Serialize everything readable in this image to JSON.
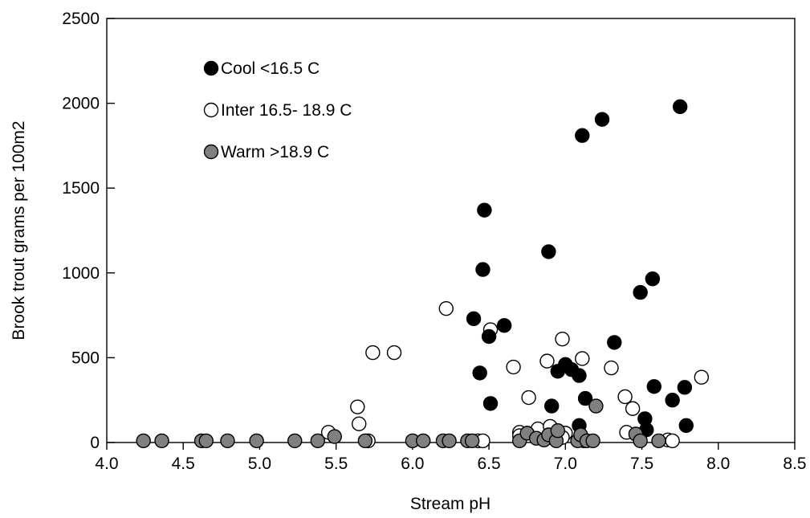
{
  "chart_data": {
    "type": "scatter",
    "title": "",
    "xlabel": "Stream pH",
    "ylabel": "Brook trout grams per 100m2",
    "xlim": [
      4.0,
      8.5
    ],
    "ylim": [
      0,
      2500
    ],
    "xticks": [
      "4.0",
      "4.5",
      "5.0",
      "5.5",
      "6.0",
      "6.5",
      "7.0",
      "7.5",
      "8.0",
      "8.5"
    ],
    "yticks": [
      "0",
      "500",
      "1000",
      "1500",
      "2000",
      "2500"
    ],
    "grid": false,
    "legend_placement": "top-left",
    "series": [
      {
        "name": "Cool <16.5 C",
        "marker": "filled-circle",
        "color": "#000000",
        "points": [
          [
            6.4,
            730
          ],
          [
            6.44,
            410
          ],
          [
            6.46,
            1020
          ],
          [
            6.47,
            1370
          ],
          [
            6.5,
            625
          ],
          [
            6.51,
            230
          ],
          [
            6.6,
            690
          ],
          [
            6.89,
            1125
          ],
          [
            6.91,
            215
          ],
          [
            6.95,
            420
          ],
          [
            7.0,
            460
          ],
          [
            7.04,
            430
          ],
          [
            7.09,
            395
          ],
          [
            7.09,
            100
          ],
          [
            7.11,
            1810
          ],
          [
            7.13,
            260
          ],
          [
            7.24,
            1905
          ],
          [
            7.32,
            590
          ],
          [
            7.49,
            885
          ],
          [
            7.52,
            140
          ],
          [
            7.53,
            75
          ],
          [
            7.57,
            965
          ],
          [
            7.58,
            330
          ],
          [
            7.7,
            250
          ],
          [
            7.75,
            1980
          ],
          [
            7.78,
            325
          ],
          [
            7.79,
            100
          ]
        ]
      },
      {
        "name": "Inter 16.5- 18.9 C",
        "marker": "open-circle",
        "color": "#000000",
        "points": [
          [
            5.45,
            60
          ],
          [
            5.64,
            210
          ],
          [
            5.65,
            110
          ],
          [
            5.71,
            10
          ],
          [
            5.74,
            530
          ],
          [
            5.88,
            530
          ],
          [
            6.22,
            790
          ],
          [
            6.43,
            10
          ],
          [
            6.46,
            10
          ],
          [
            6.51,
            665
          ],
          [
            6.66,
            445
          ],
          [
            6.7,
            60
          ],
          [
            6.7,
            40
          ],
          [
            6.76,
            265
          ],
          [
            6.82,
            80
          ],
          [
            6.88,
            480
          ],
          [
            6.9,
            95
          ],
          [
            6.98,
            610
          ],
          [
            7.0,
            55
          ],
          [
            6.98,
            30
          ],
          [
            7.11,
            495
          ],
          [
            7.12,
            10
          ],
          [
            7.3,
            440
          ],
          [
            7.39,
            270
          ],
          [
            7.4,
            60
          ],
          [
            7.44,
            200
          ],
          [
            7.67,
            15
          ],
          [
            7.7,
            10
          ],
          [
            7.89,
            385
          ]
        ]
      },
      {
        "name": "Warm >18.9 C",
        "marker": "filled-circle",
        "color": "#808080",
        "points": [
          [
            4.24,
            10
          ],
          [
            4.36,
            10
          ],
          [
            4.62,
            10
          ],
          [
            4.65,
            10
          ],
          [
            4.79,
            10
          ],
          [
            4.98,
            10
          ],
          [
            5.23,
            10
          ],
          [
            5.38,
            10
          ],
          [
            5.49,
            35
          ],
          [
            5.69,
            10
          ],
          [
            6.0,
            10
          ],
          [
            6.07,
            10
          ],
          [
            6.2,
            10
          ],
          [
            6.24,
            10
          ],
          [
            6.36,
            10
          ],
          [
            6.39,
            10
          ],
          [
            6.7,
            10
          ],
          [
            6.75,
            55
          ],
          [
            6.81,
            25
          ],
          [
            6.86,
            15
          ],
          [
            6.89,
            45
          ],
          [
            6.94,
            10
          ],
          [
            6.95,
            70
          ],
          [
            7.08,
            10
          ],
          [
            7.1,
            45
          ],
          [
            7.14,
            10
          ],
          [
            7.18,
            10
          ],
          [
            7.2,
            215
          ],
          [
            7.46,
            50
          ],
          [
            7.49,
            10
          ],
          [
            7.61,
            10
          ]
        ]
      }
    ]
  }
}
